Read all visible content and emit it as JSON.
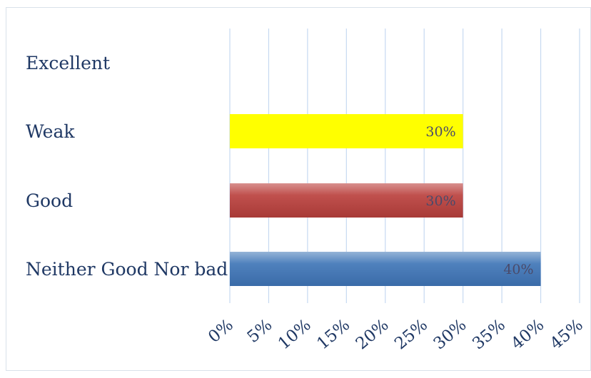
{
  "chart_data": {
    "type": "bar",
    "orientation": "horizontal",
    "categories": [
      "Excellent",
      "Weak",
      "Good",
      "Neither Good Nor bad"
    ],
    "values": [
      null,
      30,
      30,
      40
    ],
    "data_labels": [
      "",
      "30%",
      "30%",
      "40%"
    ],
    "bar_colors": [
      "#ffffff",
      "#ffff00",
      "#c0504d",
      "#4f81bd"
    ],
    "x_ticks": [
      "0%",
      "5%",
      "10%",
      "15%",
      "20%",
      "25%",
      "30%",
      "35%",
      "40%",
      "45%"
    ],
    "xlim": [
      0,
      45
    ],
    "grid": "vertical",
    "gridline_color": "#c6d9f1",
    "title": "",
    "xlabel": "",
    "ylabel": ""
  }
}
